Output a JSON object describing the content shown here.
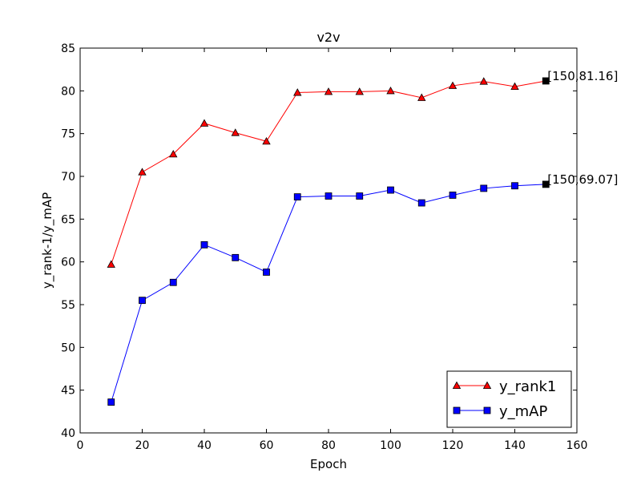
{
  "chart_data": {
    "type": "line",
    "title": "v2v",
    "xlabel": "Epoch",
    "ylabel": "y_rank-1/y_mAP",
    "xlim": [
      0,
      160
    ],
    "ylim": [
      40,
      85
    ],
    "xticks": [
      "0",
      "20",
      "40",
      "60",
      "80",
      "100",
      "120",
      "140",
      "160"
    ],
    "yticks": [
      "40",
      "45",
      "50",
      "55",
      "60",
      "65",
      "70",
      "75",
      "80",
      "85"
    ],
    "grid": false,
    "legend_position": "bottom-right",
    "x": [
      10,
      20,
      30,
      40,
      50,
      60,
      70,
      80,
      90,
      100,
      110,
      120,
      130,
      140,
      150
    ],
    "series": [
      {
        "name": "y_rank1",
        "color": "#ff0000",
        "marker": "triangle",
        "values": [
          59.7,
          70.5,
          72.6,
          76.2,
          75.1,
          74.1,
          79.8,
          79.9,
          79.9,
          80.0,
          79.2,
          80.6,
          81.1,
          80.5,
          81.16
        ]
      },
      {
        "name": "y_mAP",
        "color": "#0000ff",
        "marker": "square",
        "values": [
          43.6,
          55.5,
          57.6,
          62.0,
          60.5,
          58.8,
          67.6,
          67.7,
          67.7,
          68.4,
          66.9,
          67.8,
          68.6,
          68.9,
          69.07
        ]
      }
    ],
    "annotations": [
      {
        "text": "[150,81.16]",
        "x": 150,
        "y": 81.16
      },
      {
        "text": "[150,69.07]",
        "x": 150,
        "y": 69.07
      }
    ]
  }
}
